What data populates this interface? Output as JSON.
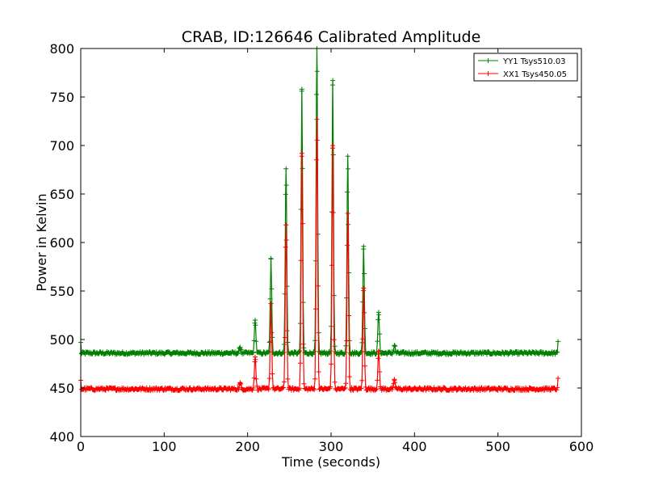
{
  "chart_data": {
    "type": "line",
    "title": "CRAB, ID:126646 Calibrated Amplitude",
    "xlabel": "Time (seconds)",
    "ylabel": "Power in Kelvin",
    "xlim": [
      0,
      600
    ],
    "ylim": [
      400,
      800
    ],
    "xticks": [
      0,
      100,
      200,
      300,
      400,
      500,
      600
    ],
    "yticks": [
      400,
      450,
      500,
      550,
      600,
      650,
      700,
      750,
      800
    ],
    "grid": false,
    "legend_position": "top-right",
    "marker": "plus",
    "series": [
      {
        "name": "YY1 Tsys510.03",
        "color": "#008000",
        "baseline": 486,
        "x_range": [
          0,
          572
        ],
        "start_value": 497,
        "end_value": 498,
        "peaks": [
          {
            "x": 191,
            "y": 492
          },
          {
            "x": 209,
            "y": 520
          },
          {
            "x": 228,
            "y": 583
          },
          {
            "x": 246,
            "y": 676
          },
          {
            "x": 265,
            "y": 758
          },
          {
            "x": 283,
            "y": 800
          },
          {
            "x": 302,
            "y": 767
          },
          {
            "x": 320,
            "y": 689
          },
          {
            "x": 339,
            "y": 596
          },
          {
            "x": 357,
            "y": 528
          },
          {
            "x": 376,
            "y": 494
          }
        ]
      },
      {
        "name": "XX1 Tsys450.05",
        "color": "#ff0000",
        "baseline": 449,
        "x_range": [
          0,
          572
        ],
        "start_value": 458,
        "end_value": 460,
        "peaks": [
          {
            "x": 191,
            "y": 455
          },
          {
            "x": 209,
            "y": 482
          },
          {
            "x": 228,
            "y": 537
          },
          {
            "x": 246,
            "y": 618
          },
          {
            "x": 265,
            "y": 692
          },
          {
            "x": 283,
            "y": 727
          },
          {
            "x": 302,
            "y": 700
          },
          {
            "x": 320,
            "y": 630
          },
          {
            "x": 339,
            "y": 553
          },
          {
            "x": 357,
            "y": 488
          },
          {
            "x": 376,
            "y": 458
          }
        ]
      }
    ]
  }
}
